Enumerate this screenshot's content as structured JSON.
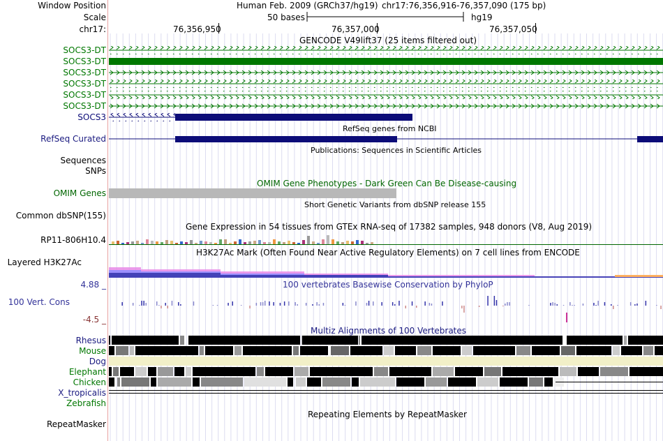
{
  "header": {
    "window_position_label": "Window Position",
    "scale_label": "Scale",
    "chrom_label": "chr17:",
    "assembly": "Human Feb. 2009 (GRCh37/hg19)",
    "position": "chr17:76,356,916-76,357,090 (175 bp)",
    "scale_text": "50 bases",
    "scale_db": "hg19",
    "ticks": [
      "76,356,950",
      "76,357,000",
      "76,357,050"
    ]
  },
  "tracks": {
    "gencode": {
      "title": "GENCODE V49lift37 (25 items filtered out)",
      "items": [
        "SOCS3-DT",
        "SOCS3-DT",
        "SOCS3-DT",
        "SOCS3-DT",
        "SOCS3-DT",
        "SOCS3-DT"
      ],
      "socs3": "SOCS3",
      "color": "#007700",
      "socs3_color": "#0c0c78"
    },
    "refseq": {
      "title": "RefSeq genes from NCBI",
      "label": "RefSeq Curated"
    },
    "publications": {
      "title": "Publications: Sequences in Scientific Articles",
      "labels": [
        "Sequences",
        "SNPs"
      ]
    },
    "omim": {
      "title": "OMIM Gene Phenotypes - Dark Green Can Be Disease-causing",
      "label": "OMIM Genes",
      "color": "#006600"
    },
    "dbsnp": {
      "title": "Short Genetic Variants from dbSNP release 155",
      "label": "Common dbSNP(155)"
    },
    "gtex": {
      "title": "Gene Expression in 54 tissues from GTEx RNA-seq of 17382 samples, 948 donors (V8, Aug 2019)",
      "label": "RP11-806H10.4"
    },
    "h3k27ac": {
      "title": "H3K27Ac Mark (Often Found Near Active Regulatory Elements) on 7 cell lines from ENCODE",
      "label": "Layered H3K27Ac"
    },
    "conservation": {
      "title": "100 vertebrates Basewise Conservation by PhyloP",
      "label": "100 Vert. Cons",
      "max": "4.88 _",
      "min": "-4.5 _"
    },
    "multiz": {
      "title": "Multiz Alignments of 100 Vertebrates",
      "species": [
        "Rhesus",
        "Mouse",
        "Dog",
        "Elephant",
        "Chicken",
        "X_tropicalis",
        "Zebrafish"
      ]
    },
    "repeatmasker": {
      "title": "Repeating Elements by RepeatMasker",
      "label": "RepeatMasker"
    }
  },
  "colors": {
    "navy": "#0c0c78",
    "green": "#007700",
    "conservation_title": "#333399",
    "label_blue": "#1a1a80"
  }
}
